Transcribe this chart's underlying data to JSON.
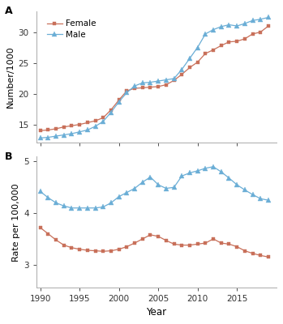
{
  "years": [
    1990,
    1991,
    1992,
    1993,
    1994,
    1995,
    1996,
    1997,
    1998,
    1999,
    2000,
    2001,
    2002,
    2003,
    2004,
    2005,
    2006,
    2007,
    2008,
    2009,
    2010,
    2011,
    2012,
    2013,
    2014,
    2015,
    2016,
    2017,
    2018,
    2019
  ],
  "panel_A_female": [
    14.0,
    14.1,
    14.3,
    14.6,
    14.8,
    15.0,
    15.3,
    15.6,
    16.1,
    17.4,
    19.0,
    20.5,
    20.9,
    21.0,
    21.1,
    21.2,
    21.5,
    22.2,
    23.2,
    24.3,
    25.2,
    26.6,
    27.2,
    27.9,
    28.5,
    28.6,
    29.0,
    29.8,
    30.1,
    31.1
  ],
  "panel_A_male": [
    12.8,
    12.9,
    13.1,
    13.3,
    13.5,
    13.8,
    14.1,
    14.7,
    15.5,
    17.0,
    18.7,
    20.2,
    21.3,
    21.8,
    21.9,
    22.1,
    22.3,
    22.5,
    24.0,
    25.8,
    27.6,
    29.8,
    30.5,
    31.0,
    31.3,
    31.1,
    31.5,
    32.0,
    32.2,
    32.5
  ],
  "panel_B_female": [
    3.72,
    3.6,
    3.48,
    3.38,
    3.33,
    3.3,
    3.28,
    3.27,
    3.26,
    3.27,
    3.3,
    3.35,
    3.42,
    3.5,
    3.58,
    3.55,
    3.47,
    3.4,
    3.38,
    3.38,
    3.4,
    3.42,
    3.5,
    3.42,
    3.4,
    3.35,
    3.27,
    3.22,
    3.18,
    3.15
  ],
  "panel_B_male": [
    4.42,
    4.3,
    4.2,
    4.14,
    4.1,
    4.1,
    4.1,
    4.1,
    4.12,
    4.2,
    4.32,
    4.4,
    4.48,
    4.6,
    4.7,
    4.55,
    4.48,
    4.5,
    4.72,
    4.78,
    4.82,
    4.87,
    4.9,
    4.8,
    4.68,
    4.55,
    4.45,
    4.36,
    4.28,
    4.25
  ],
  "female_color": "#c8705a",
  "male_color": "#6baed6",
  "panel_A_ylabel": "Number/1000",
  "panel_B_ylabel": "Rate per 100,000",
  "xlabel": "Year",
  "panel_A_ylim": [
    12,
    33.5
  ],
  "panel_A_yticks": [
    15,
    20,
    25,
    30
  ],
  "panel_B_ylim": [
    2.55,
    5.1
  ],
  "panel_B_yticks": [
    3,
    4,
    5
  ],
  "xlim": [
    1989.5,
    2020
  ],
  "xticks": [
    1990,
    1995,
    2000,
    2005,
    2010,
    2015
  ],
  "panel_A_label": "A",
  "panel_B_label": "B",
  "background_color": "#ffffff",
  "spine_color": "#aaaaaa"
}
